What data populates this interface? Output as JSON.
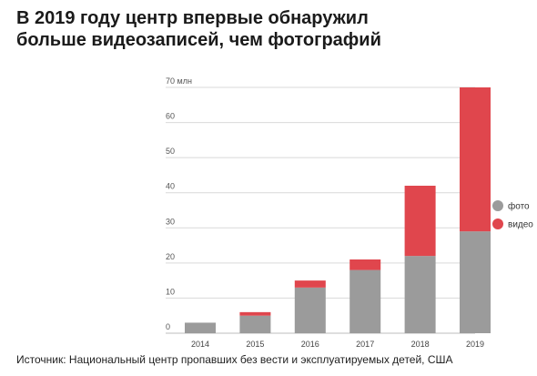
{
  "title_lines": [
    "В 2019 году центр впервые обнаружил",
    "больше видеозаписей, чем фотографий"
  ],
  "source": "Источник: Национальный центр пропавших без вести и эксплуатируемых детей, США",
  "chart_data": {
    "type": "bar",
    "stacked": true,
    "categories": [
      "2014",
      "2015",
      "2016",
      "2017",
      "2018",
      "2019"
    ],
    "series": [
      {
        "name": "фото",
        "color": "#9b9b9b",
        "values": [
          3,
          5,
          13,
          18,
          22,
          29
        ]
      },
      {
        "name": "видео",
        "color": "#e0464d",
        "values": [
          0,
          1,
          2,
          3,
          20,
          41
        ]
      }
    ],
    "ylim": [
      0,
      70
    ],
    "yticks": [
      0,
      10,
      20,
      30,
      40,
      50,
      60,
      70
    ],
    "yunit": "млн",
    "legend_position": "right",
    "grid": true
  }
}
